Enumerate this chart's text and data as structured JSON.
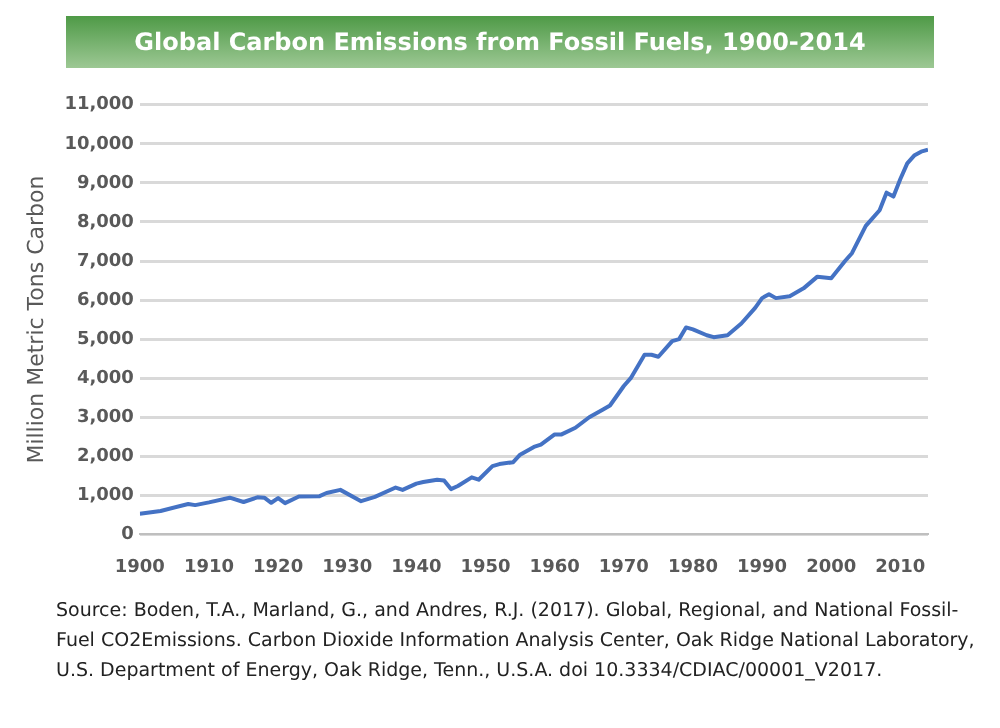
{
  "chart_data": {
    "type": "line",
    "title": "Global Carbon Emissions from Fossil Fuels, 1900-2014",
    "ylabel": "Million Metric Tons Carbon",
    "x": [
      1900,
      1903,
      1907,
      1908,
      1910,
      1913,
      1915,
      1917,
      1918,
      1919,
      1920,
      1921,
      1923,
      1926,
      1927,
      1929,
      1932,
      1934,
      1937,
      1938,
      1940,
      1941,
      1943,
      1944,
      1945,
      1946,
      1948,
      1949,
      1951,
      1952,
      1954,
      1955,
      1957,
      1958,
      1960,
      1961,
      1963,
      1965,
      1967,
      1968,
      1970,
      1971,
      1973,
      1974,
      1975,
      1977,
      1978,
      1979,
      1980,
      1982,
      1983,
      1985,
      1987,
      1989,
      1990,
      1991,
      1992,
      1994,
      1996,
      1998,
      2000,
      2002,
      2003,
      2005,
      2007,
      2008,
      2009,
      2010,
      2011,
      2012,
      2013,
      2014
    ],
    "series": [
      {
        "color": "#4472c4",
        "values": [
          530,
          600,
          780,
          750,
          820,
          940,
          830,
          950,
          940,
          810,
          930,
          800,
          970,
          980,
          1060,
          1140,
          850,
          960,
          1200,
          1140,
          1300,
          1340,
          1400,
          1380,
          1160,
          1240,
          1460,
          1400,
          1750,
          1800,
          1850,
          2040,
          2240,
          2300,
          2560,
          2560,
          2730,
          3000,
          3200,
          3300,
          3800,
          4000,
          4600,
          4600,
          4550,
          4950,
          5000,
          5300,
          5250,
          5100,
          5050,
          5100,
          5400,
          5800,
          6050,
          6150,
          6050,
          6100,
          6300,
          6600,
          6560,
          7000,
          7200,
          7900,
          8300,
          8750,
          8650,
          9100,
          9500,
          9700,
          9800,
          9850
        ]
      }
    ],
    "xlim": [
      1900,
      2014
    ],
    "xticks": [
      1900,
      1910,
      1920,
      1930,
      1940,
      1950,
      1960,
      1970,
      1980,
      1990,
      2000,
      2010
    ],
    "ylim": [
      0,
      11000
    ],
    "yticks": [
      {
        "value": 0,
        "label": "0"
      },
      {
        "value": 1000,
        "label": "1,000"
      },
      {
        "value": 2000,
        "label": "2,000"
      },
      {
        "value": 3000,
        "label": "3,000"
      },
      {
        "value": 4000,
        "label": "4,000"
      },
      {
        "value": 5000,
        "label": "5,000"
      },
      {
        "value": 6000,
        "label": "6,000"
      },
      {
        "value": 7000,
        "label": "7,000"
      },
      {
        "value": 8000,
        "label": "8,000"
      },
      {
        "value": 9000,
        "label": "9,000"
      },
      {
        "value": 10000,
        "label": "10,000"
      },
      {
        "value": 11000,
        "label": "11,000"
      }
    ],
    "grid": "y",
    "legend": false,
    "marker": "none",
    "line_style": "solid",
    "annotations": [
      "Source: Boden, T.A., Marland, G., and Andres, R.J. (2017). Global, Regional, and National Fossil-Fuel CO2Emissions. Carbon Dioxide Information Analysis Center, Oak Ridge National Laboratory, U.S. Department of Energy, Oak Ridge, Tenn., U.S.A. doi 10.3334/CDIAC/00001_V2017."
    ]
  }
}
